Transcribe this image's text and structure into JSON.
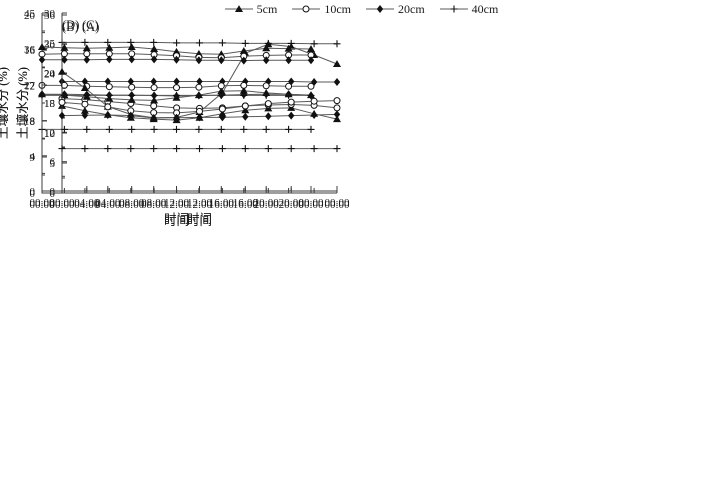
{
  "colors": {
    "axis": "#3c3c3c",
    "line": "#5a5a5a",
    "marker": "#111111",
    "background": "#ffffff"
  },
  "legend": {
    "items": [
      {
        "label": "5cm",
        "marker": "triangle"
      },
      {
        "label": "10cm",
        "marker": "circle"
      },
      {
        "label": "20cm",
        "marker": "diamond"
      },
      {
        "label": "40cm",
        "marker": "plus"
      }
    ]
  },
  "chart_data": [
    {
      "type": "line",
      "panel_label": "(A)",
      "xlabel": "时间",
      "ylabel": "土壤水分 (%)",
      "ylim": [
        0,
        36
      ],
      "y_step": 6,
      "grid": false,
      "legend_position": "top-center-shared",
      "x_labels": [
        "00:00",
        "04:00",
        "08:00",
        "12:00",
        "16:00",
        "20:00",
        "00:00"
      ],
      "x_hours": [
        0,
        2,
        4,
        6,
        8,
        10,
        12,
        14,
        16,
        18,
        20,
        22,
        24
      ],
      "series": [
        {
          "name": "5cm",
          "marker": "triangle",
          "values": [
            17.4,
            16.4,
            15.6,
            15.0,
            14.7,
            14.5,
            15.0,
            15.8,
            16.5,
            16.9,
            17.0,
            15.8,
            14.7
          ]
        },
        {
          "name": "10cm",
          "marker": "circle",
          "values": [
            18.9,
            18.7,
            18.3,
            17.9,
            17.4,
            17.0,
            16.9,
            17.0,
            17.4,
            17.6,
            17.7,
            17.5,
            17.0
          ]
        },
        {
          "name": "20cm",
          "marker": "diamond",
          "values": [
            22.4,
            22.4,
            22.4,
            22.4,
            22.4,
            22.4,
            22.4,
            22.4,
            22.4,
            22.4,
            22.4,
            22.3,
            22.3
          ]
        },
        {
          "name": "40cm",
          "marker": "plus",
          "values": [
            30.4,
            30.4,
            30.4,
            30.4,
            30.4,
            30.3,
            30.3,
            30.3,
            30.2,
            30.2,
            30.2,
            30.1,
            30.1
          ]
        }
      ]
    },
    {
      "type": "line",
      "panel_label": "(B)",
      "xlabel": "时间",
      "ylabel": "土壤水分 (%)",
      "ylim": [
        0,
        20
      ],
      "y_step": 4,
      "grid": false,
      "x_labels": [
        "00:00",
        "04:00",
        "08:00",
        "12:00",
        "16:00",
        "20:00",
        "00:00"
      ],
      "x_hours": [
        0,
        2,
        4,
        6,
        8,
        10,
        12,
        14,
        16,
        18,
        20,
        22,
        24
      ],
      "series": [
        {
          "name": "5cm",
          "marker": "triangle",
          "values": [
            11.0,
            10.9,
            10.7,
            10.5,
            10.35,
            10.3,
            10.6,
            10.9,
            11.35,
            11.4,
            11.15,
            11.0,
            10.9
          ]
        },
        {
          "name": "10cm",
          "marker": "circle",
          "values": [
            12.0,
            12.0,
            11.9,
            11.85,
            11.8,
            11.75,
            11.75,
            11.8,
            11.95,
            12.0,
            11.95,
            11.9,
            11.9
          ]
        },
        {
          "name": "20cm",
          "marker": "diamond",
          "values": [
            11.0,
            11.0,
            10.95,
            10.9,
            10.9,
            10.85,
            10.8,
            10.85,
            10.9,
            10.95,
            11.0,
            11.0,
            10.85
          ]
        },
        {
          "name": "40cm",
          "marker": "plus",
          "values": [
            7.0,
            7.0,
            7.0,
            7.0,
            7.0,
            7.0,
            7.0,
            7.0,
            7.0,
            7.0,
            7.0,
            7.0,
            7.0
          ]
        }
      ]
    },
    {
      "type": "line",
      "panel_label": "(C)",
      "xlabel": "时间",
      "ylabel": "土壤水分 (%)",
      "ylim": [
        0,
        30
      ],
      "y_step": 5,
      "grid": false,
      "x_labels": [
        "00:00",
        "04:00",
        "08:00",
        "12:00",
        "16:00",
        "20:00",
        "00:00"
      ],
      "x_hours": [
        0,
        2,
        4,
        6,
        8,
        10,
        12,
        14,
        16,
        18,
        20,
        22,
        24
      ],
      "series": [
        {
          "name": "5cm",
          "marker": "triangle",
          "values": [
            20.2,
            17.5,
            14.4,
            13.1,
            12.55,
            12.6,
            13.5,
            16.7,
            23.3,
            24.8,
            24.4,
            23.0,
            21.5
          ]
        },
        {
          "name": "10cm",
          "marker": "circle",
          "values": [
            15.1,
            14.8,
            14.35,
            13.7,
            13.4,
            13.35,
            13.6,
            14.0,
            14.5,
            14.9,
            15.15,
            15.3,
            15.4
          ]
        },
        {
          "name": "20cm",
          "marker": "diamond",
          "values": [
            12.9,
            12.95,
            13.0,
            12.9,
            12.5,
            12.55,
            12.6,
            12.6,
            12.7,
            12.8,
            12.9,
            13.0,
            13.1
          ]
        },
        {
          "name": "40cm",
          "marker": "plus",
          "values": [
            7.4,
            7.4,
            7.4,
            7.4,
            7.4,
            7.4,
            7.4,
            7.4,
            7.4,
            7.4,
            7.4,
            7.4,
            7.4
          ]
        }
      ]
    },
    {
      "type": "line",
      "panel_label": "(D)",
      "xlabel": "时间",
      "ylabel": "土壤水分 (%)",
      "ylim": [
        0,
        45
      ],
      "y_step": 9,
      "grid": false,
      "x_labels": [
        "00:00",
        "04:00",
        "08:00",
        "12:00",
        "16:00",
        "20:00",
        "00:00"
      ],
      "x_hours": [
        0,
        2,
        4,
        6,
        8,
        10,
        12,
        14,
        16,
        18,
        20,
        22,
        24
      ],
      "series": [
        {
          "name": "5cm",
          "marker": "triangle",
          "values": [
            36.5,
            36.3,
            36.2,
            36.3,
            36.5,
            36.0,
            35.3,
            34.8,
            34.7,
            35.5,
            36.2,
            36.1,
            36.0
          ]
        },
        {
          "name": "10cm",
          "marker": "circle",
          "values": [
            34.7,
            34.8,
            34.8,
            34.8,
            34.8,
            34.6,
            34.3,
            33.9,
            33.8,
            34.2,
            34.4,
            34.5,
            34.5
          ]
        },
        {
          "name": "20cm",
          "marker": "diamond",
          "values": [
            33.3,
            33.3,
            33.3,
            33.4,
            33.4,
            33.4,
            33.3,
            33.2,
            33.2,
            33.1,
            33.2,
            33.2,
            33.2
          ]
        },
        {
          "name": "40cm",
          "marker": "plus",
          "values": [
            24.4,
            24.4,
            24.4,
            24.4,
            24.4,
            24.4,
            24.4,
            24.4,
            24.4,
            24.4,
            24.4,
            24.4,
            24.4
          ]
        }
      ]
    }
  ]
}
